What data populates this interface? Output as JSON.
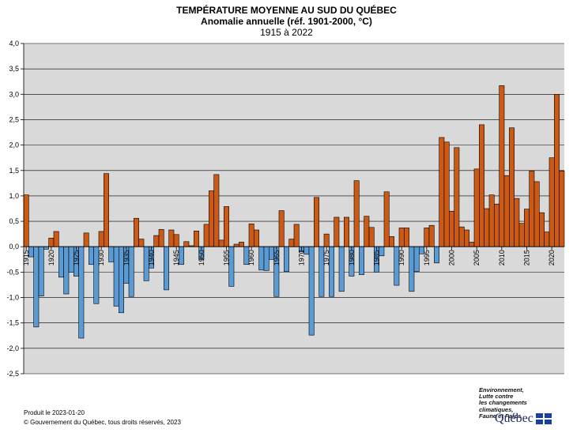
{
  "header": {
    "title": "TEMPÉRATURE MOYENNE AU SUD DU QUÉBEC",
    "subtitle": "Anomalie annuelle (réf. 1901-2000, °C)",
    "period": "1915 à 2022"
  },
  "footer": {
    "produced": "Produit le 2023-01-20",
    "copyright": "© Gouvernement du Québec, tous droits réservés, 2023"
  },
  "ministry": {
    "line1": "Environnement,",
    "line2": "Lutte contre",
    "line3": "les changements",
    "line4": "climatiques,",
    "line5": "Faune et Parcs",
    "logo_text": "Québec"
  },
  "colors": {
    "positive": "#cc5a14",
    "negative": "#5b9bd5",
    "plot_background": "#d9d9d9"
  },
  "chart_data": {
    "type": "bar",
    "title": "TEMPÉRATURE MOYENNE AU SUD DU QUÉBEC",
    "subtitle": "Anomalie annuelle (réf. 1901-2000, °C)",
    "xlabel": "",
    "ylabel": "",
    "ylim": [
      -2.5,
      4.0
    ],
    "y_ticks": [
      "-2,5",
      "-2,0",
      "-1,5",
      "-1,0",
      "-0,5",
      "0,0",
      "0,5",
      "1,0",
      "1,5",
      "2,0",
      "2,5",
      "3,0",
      "3,5",
      "4,0"
    ],
    "x_tick_labels": [
      "1915",
      "1920",
      "1925",
      "1930",
      "1935",
      "1940",
      "1945",
      "1950",
      "1955",
      "1960",
      "1965",
      "1970",
      "1975",
      "1980",
      "1985",
      "1990",
      "1995",
      "2000",
      "2005",
      "2010",
      "2015",
      "2020"
    ],
    "grid": "horizontal",
    "x_start": 1915,
    "x_end": 2022,
    "series": [
      {
        "values": [
          1.02,
          -0.2,
          -1.58,
          -0.97,
          -0.05,
          0.17,
          0.3,
          -0.6,
          -0.93,
          -0.5,
          -0.58,
          -1.8,
          0.27,
          -0.35,
          -1.12,
          0.3,
          1.44,
          -0.3,
          -1.17,
          -1.3,
          -0.72,
          -0.98,
          0.56,
          0.15,
          -0.67,
          -0.42,
          0.22,
          0.34,
          -0.85,
          0.33,
          0.24,
          -0.35,
          0.1,
          0.02,
          0.31,
          -0.25,
          0.44,
          1.1,
          1.42,
          0.13,
          0.79,
          -0.78,
          0.05,
          0.09,
          -0.35,
          0.45,
          0.33,
          -0.46,
          -0.47,
          -0.25,
          -0.98,
          0.71,
          -0.49,
          0.15,
          0.44,
          -0.1,
          -0.15,
          -1.74,
          0.97,
          -0.98,
          0.25,
          -0.98,
          0.58,
          -0.88,
          0.58,
          -0.58,
          1.3,
          -0.55,
          0.6,
          0.38,
          -0.5,
          -0.18,
          1.08,
          0.2,
          -0.76,
          0.37,
          0.37,
          -0.88,
          -0.49,
          -0.14,
          0.37,
          0.42,
          -0.32,
          2.15,
          2.06,
          0.7,
          1.95,
          0.39,
          0.33,
          0.09,
          1.53,
          2.4,
          0.75,
          1.02,
          0.84,
          3.17,
          1.4,
          2.34,
          0.95,
          0.46,
          0.74,
          1.49,
          1.28,
          0.67,
          0.29,
          1.75,
          3.0,
          1.49
        ]
      }
    ]
  }
}
